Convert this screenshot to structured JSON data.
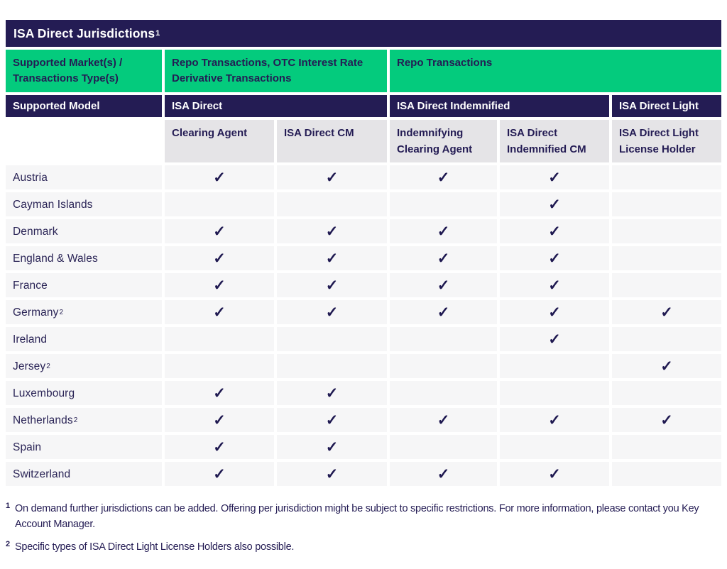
{
  "title": {
    "text": "ISA Direct Jurisdictions",
    "sup": "1"
  },
  "colors": {
    "navy": "#241C54",
    "green": "#04CB7D",
    "header_gray": "#E5E4E7",
    "row_gray": "#F6F6F7",
    "check_navy": "#1E1850"
  },
  "header": {
    "market_label": "Supported Market(s) / Transactions Type(s)",
    "market_groups": [
      {
        "label": "Repo Transactions, OTC Interest Rate Derivative Transactions"
      },
      {
        "label": "Repo Transactions"
      }
    ],
    "model_label": "Supported Model",
    "model_groups": [
      {
        "label": "ISA Direct"
      },
      {
        "label": "ISA Direct Indemnified"
      },
      {
        "label": "ISA Direct Light"
      }
    ],
    "roles": [
      "Clearing Agent",
      "ISA Direct CM",
      "Indemnifying Clearing Agent",
      "ISA Direct Indemnified CM",
      "ISA Direct Light License Holder"
    ]
  },
  "check_glyph": "✓",
  "rows": [
    {
      "country": "Austria",
      "sup": "",
      "checks": [
        true,
        true,
        true,
        true,
        false
      ]
    },
    {
      "country": "Cayman Islands",
      "sup": "",
      "checks": [
        false,
        false,
        false,
        true,
        false
      ]
    },
    {
      "country": "Denmark",
      "sup": "",
      "checks": [
        true,
        true,
        true,
        true,
        false
      ]
    },
    {
      "country": "England & Wales",
      "sup": "",
      "checks": [
        true,
        true,
        true,
        true,
        false
      ]
    },
    {
      "country": "France",
      "sup": "",
      "checks": [
        true,
        true,
        true,
        true,
        false
      ]
    },
    {
      "country": "Germany",
      "sup": "2",
      "checks": [
        true,
        true,
        true,
        true,
        true
      ]
    },
    {
      "country": "Ireland",
      "sup": "",
      "checks": [
        false,
        false,
        false,
        true,
        false
      ]
    },
    {
      "country": "Jersey",
      "sup": "2",
      "checks": [
        false,
        false,
        false,
        false,
        true
      ]
    },
    {
      "country": "Luxembourg",
      "sup": "",
      "checks": [
        true,
        true,
        false,
        false,
        false
      ]
    },
    {
      "country": "Netherlands",
      "sup": "2",
      "checks": [
        true,
        true,
        true,
        true,
        true
      ]
    },
    {
      "country": "Spain",
      "sup": "",
      "checks": [
        true,
        true,
        false,
        false,
        false
      ]
    },
    {
      "country": "Switzerland",
      "sup": "",
      "checks": [
        true,
        true,
        true,
        true,
        false
      ]
    }
  ],
  "footnotes": [
    {
      "sup": "1",
      "text": "On demand further jurisdictions can be added. Offering per jurisdiction might be subject to specific restrictions. For more information, please contact you Key Account Manager."
    },
    {
      "sup": "2",
      "text": "Specific types of ISA Direct Light License Holders also possible."
    }
  ]
}
